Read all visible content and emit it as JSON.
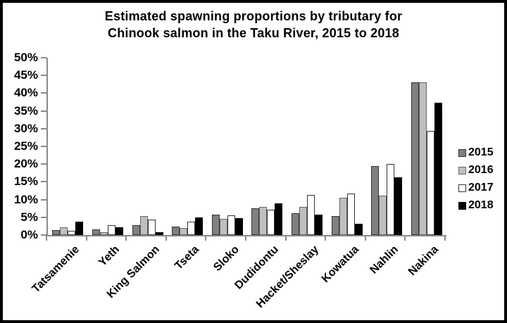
{
  "chart_data": {
    "type": "bar",
    "title": "Estimated spawning proportions by tributary for Chinook salmon in the Taku River, 2015 to 2018",
    "title_lines": [
      "Estimated spawning proportions by tributary for",
      "Chinook salmon in the Taku River, 2015 to 2018"
    ],
    "categories": [
      "Tatsamenie",
      "Yeth",
      "King Salmon",
      "Tseta",
      "Sloko",
      "Dudidontu",
      "Hacket/Sheslay",
      "Kowatua",
      "Nahlin",
      "Nakina"
    ],
    "series": [
      {
        "name": "2015",
        "fill": "#808080",
        "border": "#333333",
        "values": [
          1.3,
          1.5,
          2.8,
          2.4,
          5.8,
          7.5,
          6.2,
          5.4,
          19.4,
          43.0
        ]
      },
      {
        "name": "2016",
        "fill": "#bfbfbf",
        "border": "#666666",
        "values": [
          2.1,
          0.7,
          5.4,
          2.0,
          4.6,
          8.0,
          7.9,
          10.5,
          11.2,
          43.0
        ]
      },
      {
        "name": "2017",
        "fill": "#ffffff",
        "border": "#333333",
        "values": [
          1.2,
          2.8,
          4.4,
          3.7,
          5.5,
          7.2,
          11.3,
          11.7,
          20.0,
          29.4
        ]
      },
      {
        "name": "2018",
        "fill": "#000000",
        "border": "#000000",
        "values": [
          3.7,
          2.1,
          0.8,
          4.9,
          4.7,
          9.0,
          5.7,
          3.1,
          16.2,
          37.4
        ]
      }
    ],
    "value_unit": "%",
    "xlabel": "",
    "ylabel": "",
    "ylim": [
      0,
      50
    ],
    "ytick_step": 5,
    "ytick_labels": [
      "0%",
      "5%",
      "10%",
      "15%",
      "20%",
      "25%",
      "30%",
      "35%",
      "40%",
      "45%",
      "50%"
    ],
    "legend_position": "right",
    "grid": false,
    "axis_color": "#8a8a8a"
  }
}
